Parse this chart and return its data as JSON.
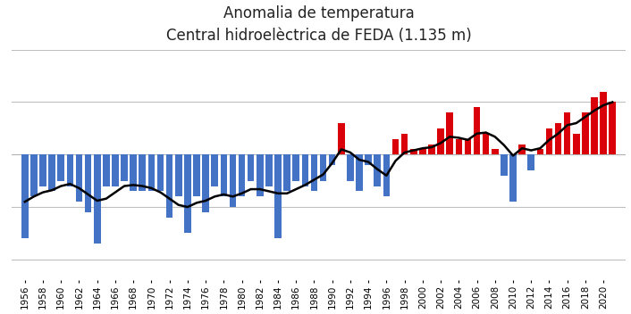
{
  "title_line1": "Anomalia de temperatura",
  "title_line2": "Central hidroelèctrica de FEDA (1.135 m)",
  "years": [
    1956,
    1957,
    1958,
    1959,
    1960,
    1961,
    1962,
    1963,
    1964,
    1965,
    1966,
    1967,
    1968,
    1969,
    1970,
    1971,
    1972,
    1973,
    1974,
    1975,
    1976,
    1977,
    1978,
    1979,
    1980,
    1981,
    1982,
    1983,
    1984,
    1985,
    1986,
    1987,
    1988,
    1989,
    1990,
    1991,
    1992,
    1993,
    1994,
    1995,
    1996,
    1997,
    1998,
    1999,
    2000,
    2001,
    2002,
    2003,
    2004,
    2005,
    2006,
    2007,
    2008,
    2009,
    2010,
    2011,
    2012,
    2013,
    2014,
    2015,
    2016,
    2017,
    2018,
    2019,
    2020,
    2021
  ],
  "anomalies": [
    -0.8,
    -0.4,
    -0.3,
    -0.35,
    -0.25,
    -0.3,
    -0.45,
    -0.55,
    -0.85,
    -0.3,
    -0.3,
    -0.25,
    -0.35,
    -0.35,
    -0.35,
    -0.35,
    -0.6,
    -0.4,
    -0.75,
    -0.4,
    -0.55,
    -0.3,
    -0.4,
    -0.5,
    -0.4,
    -0.25,
    -0.4,
    -0.3,
    -0.8,
    -0.35,
    -0.25,
    -0.3,
    -0.35,
    -0.25,
    -0.1,
    0.3,
    -0.25,
    -0.35,
    -0.1,
    -0.3,
    -0.4,
    0.15,
    0.2,
    0.05,
    0.05,
    0.1,
    0.25,
    0.4,
    0.15,
    0.15,
    0.45,
    0.2,
    0.05,
    -0.2,
    -0.45,
    0.1,
    -0.15,
    0.05,
    0.25,
    0.3,
    0.4,
    0.2,
    0.4,
    0.55,
    0.6,
    0.5
  ],
  "smoothed": [
    -0.45,
    -0.4,
    -0.36,
    -0.34,
    -0.3,
    -0.28,
    -0.32,
    -0.38,
    -0.44,
    -0.42,
    -0.36,
    -0.3,
    -0.29,
    -0.3,
    -0.32,
    -0.36,
    -0.42,
    -0.48,
    -0.5,
    -0.46,
    -0.44,
    -0.4,
    -0.38,
    -0.4,
    -0.37,
    -0.33,
    -0.33,
    -0.35,
    -0.37,
    -0.37,
    -0.33,
    -0.29,
    -0.24,
    -0.19,
    -0.08,
    0.05,
    0.02,
    -0.05,
    -0.07,
    -0.14,
    -0.2,
    -0.06,
    0.02,
    0.04,
    0.06,
    0.07,
    0.11,
    0.17,
    0.16,
    0.14,
    0.2,
    0.21,
    0.17,
    0.09,
    -0.01,
    0.06,
    0.04,
    0.06,
    0.14,
    0.2,
    0.28,
    0.3,
    0.36,
    0.42,
    0.47,
    0.5
  ],
  "color_positive": "#d9000a",
  "color_negative": "#4472c4",
  "line_color": "#000000",
  "background_color": "#ffffff",
  "grid_color": "#bfbfbf",
  "ylim": [
    -1.2,
    1.0
  ],
  "yticks": [
    -1.0,
    -0.5,
    0.0,
    0.5,
    1.0
  ],
  "title_fontsize": 12,
  "tick_labelsize": 7.5
}
